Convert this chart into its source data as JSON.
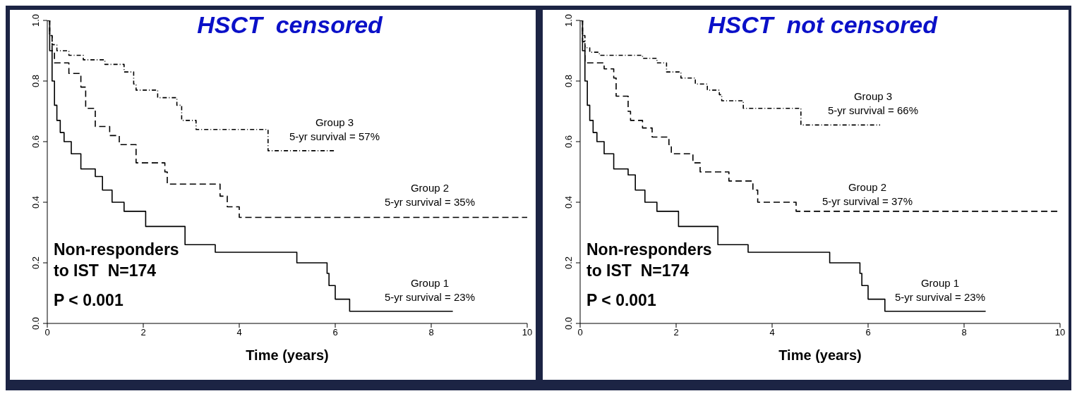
{
  "chart_data": [
    {
      "type": "step",
      "title": "HSCT  censored",
      "xlabel": "Time (years)",
      "xlim": [
        0,
        10
      ],
      "xticks": [
        0,
        2,
        4,
        6,
        8,
        10
      ],
      "ylim": [
        0,
        1
      ],
      "yticks": [
        {
          "value": 0,
          "label": "0.0"
        },
        {
          "value": 0.2,
          "label": "0.2"
        },
        {
          "value": 0.4,
          "label": "0.4"
        },
        {
          "value": 0.6,
          "label": "0.6"
        },
        {
          "value": 0.8,
          "label": "0.8"
        },
        {
          "value": 1,
          "label": "1.0"
        }
      ],
      "grid": false,
      "series": [
        {
          "color": "#000000",
          "line_style": "solid",
          "x": [
            0,
            0.05,
            0.1,
            0.15,
            0.2,
            0.27,
            0.35,
            0.5,
            0.7,
            1.0,
            1.15,
            1.35,
            1.6,
            2.05,
            2.87,
            3.5,
            5.2,
            5.83,
            5.87,
            6.0,
            6.3,
            8.45
          ],
          "values": [
            1.0,
            0.9,
            0.8,
            0.72,
            0.67,
            0.63,
            0.6,
            0.56,
            0.51,
            0.485,
            0.44,
            0.4,
            0.37,
            0.32,
            0.26,
            0.235,
            0.2,
            0.165,
            0.125,
            0.08,
            0.04,
            0.04
          ]
        },
        {
          "color": "#000000",
          "line_style": "dashed",
          "x": [
            0,
            0.05,
            0.1,
            0.15,
            0.45,
            0.7,
            0.8,
            1.0,
            1.3,
            1.5,
            1.85,
            2.45,
            2.5,
            3.6,
            3.75,
            4.0,
            10
          ],
          "values": [
            1.0,
            0.95,
            0.9,
            0.86,
            0.825,
            0.78,
            0.71,
            0.65,
            0.62,
            0.59,
            0.53,
            0.5,
            0.46,
            0.42,
            0.385,
            0.35,
            0.35
          ]
        },
        {
          "color": "#000000",
          "line_style": "dotted",
          "x": [
            0,
            0.05,
            0.1,
            0.2,
            0.45,
            0.75,
            1.2,
            1.6,
            1.8,
            1.85,
            2.3,
            2.7,
            2.8,
            3.1,
            4.6,
            6.0
          ],
          "values": [
            1.0,
            0.95,
            0.92,
            0.9,
            0.885,
            0.87,
            0.855,
            0.83,
            0.79,
            0.77,
            0.745,
            0.72,
            0.67,
            0.64,
            0.57,
            0.57
          ]
        }
      ],
      "annotations": [
        "Group 3\n5-yr survival = 57%",
        "Group 2\n5-yr survival = 35%",
        "Group 1\n5-yr survival = 23%",
        "Non-responders\nto IST  N=174",
        "P < 0.001"
      ]
    },
    {
      "type": "step",
      "title": "HSCT  not censored",
      "xlabel": "Time (years)",
      "xlim": [
        0,
        10
      ],
      "xticks": [
        0,
        2,
        4,
        6,
        8,
        10
      ],
      "ylim": [
        0,
        1
      ],
      "yticks": [
        {
          "value": 0,
          "label": "0.0"
        },
        {
          "value": 0.2,
          "label": "0.2"
        },
        {
          "value": 0.4,
          "label": "0.4"
        },
        {
          "value": 0.6,
          "label": "0.6"
        },
        {
          "value": 0.8,
          "label": "0.8"
        },
        {
          "value": 1,
          "label": "1.0"
        }
      ],
      "grid": false,
      "series": [
        {
          "color": "#000000",
          "line_style": "solid",
          "x": [
            0,
            0.05,
            0.1,
            0.15,
            0.2,
            0.27,
            0.35,
            0.5,
            0.7,
            1.0,
            1.15,
            1.35,
            1.6,
            2.05,
            2.87,
            3.5,
            5.2,
            5.83,
            5.87,
            6.0,
            6.35,
            8.45
          ],
          "values": [
            1.0,
            0.9,
            0.8,
            0.72,
            0.67,
            0.63,
            0.6,
            0.56,
            0.51,
            0.49,
            0.44,
            0.4,
            0.37,
            0.32,
            0.26,
            0.235,
            0.2,
            0.165,
            0.125,
            0.08,
            0.04,
            0.04
          ]
        },
        {
          "color": "#000000",
          "line_style": "dashed",
          "x": [
            0,
            0.05,
            0.1,
            0.5,
            0.7,
            0.75,
            1.0,
            1.05,
            1.3,
            1.5,
            1.85,
            1.9,
            2.35,
            2.5,
            3.1,
            3.6,
            3.7,
            4.5,
            10
          ],
          "values": [
            1.0,
            0.93,
            0.86,
            0.84,
            0.81,
            0.75,
            0.7,
            0.67,
            0.645,
            0.615,
            0.59,
            0.56,
            0.53,
            0.5,
            0.47,
            0.44,
            0.4,
            0.37,
            0.37
          ]
        },
        {
          "color": "#000000",
          "line_style": "dotted",
          "x": [
            0,
            0.05,
            0.1,
            0.2,
            0.4,
            1.3,
            1.6,
            1.8,
            2.1,
            2.4,
            2.65,
            2.9,
            2.95,
            3.4,
            4.6,
            6.25
          ],
          "values": [
            1.0,
            0.95,
            0.91,
            0.895,
            0.885,
            0.875,
            0.86,
            0.83,
            0.81,
            0.79,
            0.77,
            0.755,
            0.735,
            0.71,
            0.655,
            0.655
          ]
        }
      ],
      "annotations": [
        "Group 3\n5-yr survival = 66%",
        "Group 2\n5-yr survival = 37%",
        "Group 1\n5-yr survival = 23%",
        "Non-responders\nto IST  N=174",
        "P < 0.001"
      ]
    }
  ]
}
